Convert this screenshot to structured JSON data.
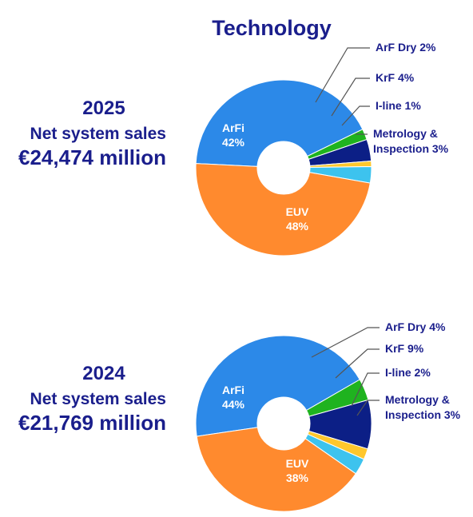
{
  "title": "Technology",
  "charts": [
    {
      "year": "2025",
      "label": "Net system sales",
      "amount": "€24,474 million"
    },
    {
      "year": "2024",
      "label": "Net system sales",
      "amount": "€21,769 million"
    }
  ],
  "colors": {
    "EUV": "#ff8a2e",
    "ArFi": "#2c89e8",
    "ArF Dry": "#1fb31f",
    "KrF": "#0c1f86",
    "I-line": "#ffc72c",
    "Metrology & Inspection": "#3dc3ee",
    "text": "#1a1e8c"
  },
  "chart_data": [
    {
      "type": "pie",
      "title": "2025",
      "donut": true,
      "slices": [
        {
          "name": "EUV",
          "value": 48,
          "label": "48%"
        },
        {
          "name": "ArFi",
          "value": 42,
          "label": "42%"
        },
        {
          "name": "ArF Dry",
          "value": 2,
          "label": "ArF Dry 2%"
        },
        {
          "name": "KrF",
          "value": 4,
          "label": "KrF 4%"
        },
        {
          "name": "I-line",
          "value": 1,
          "label": "I-line 1%"
        },
        {
          "name": "Metrology & Inspection",
          "value": 3,
          "label": "Metrology & Inspection 3%"
        }
      ]
    },
    {
      "type": "pie",
      "title": "2024",
      "donut": true,
      "slices": [
        {
          "name": "EUV",
          "value": 38,
          "label": "38%"
        },
        {
          "name": "ArFi",
          "value": 44,
          "label": "44%"
        },
        {
          "name": "ArF Dry",
          "value": 4,
          "label": "ArF Dry 4%"
        },
        {
          "name": "KrF",
          "value": 9,
          "label": "KrF 9%"
        },
        {
          "name": "I-line",
          "value": 2,
          "label": "I-line 2%"
        },
        {
          "name": "Metrology & Inspection",
          "value": 3,
          "label": "Metrology & Inspection 3%"
        }
      ]
    }
  ]
}
